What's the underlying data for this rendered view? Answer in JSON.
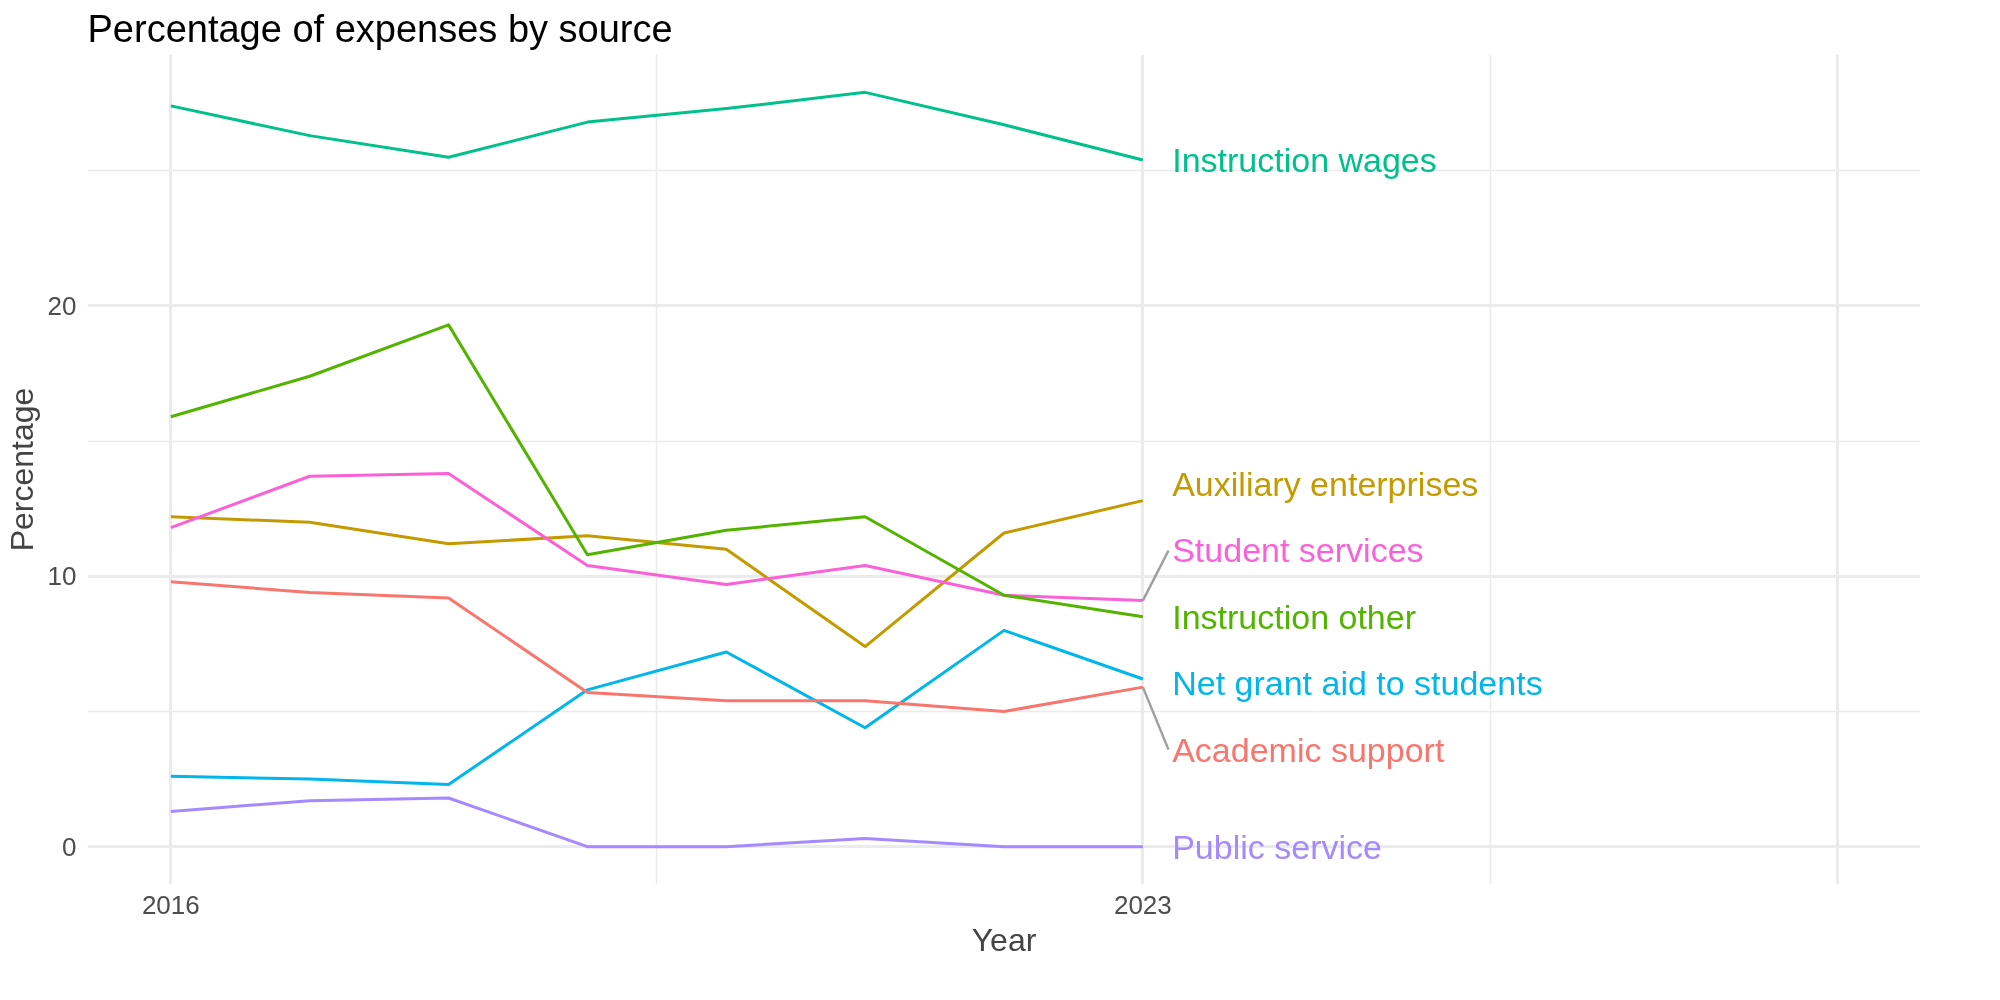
{
  "chart_data": {
    "type": "line",
    "title": "Percentage of expenses by source",
    "xlabel": "Year",
    "ylabel": "Percentage",
    "x": [
      2016,
      2017,
      2018,
      2019,
      2020,
      2021,
      2022,
      2023
    ],
    "xlim": [
      2015.4,
      2028.6
    ],
    "xticks": [
      2016,
      2023,
      {
        "value": 2028,
        "label": null
      }
    ],
    "ylim": [
      -1.4,
      29.3
    ],
    "yticks": [
      0,
      10,
      20
    ],
    "grid": true,
    "line_style": "solid",
    "series": [
      {
        "name": "Instruction wages",
        "color": "#00c08b",
        "values": [
          27.4,
          26.3,
          25.5,
          26.8,
          27.3,
          27.9,
          26.7,
          25.4
        ]
      },
      {
        "name": "Auxiliary enterprises",
        "color": "#c49a00",
        "values": [
          12.2,
          12.0,
          11.2,
          11.5,
          11.0,
          7.4,
          11.6,
          12.8
        ]
      },
      {
        "name": "Student services",
        "color": "#fb61d7",
        "values": [
          11.8,
          13.7,
          13.8,
          10.4,
          9.7,
          10.4,
          9.3,
          9.1
        ]
      },
      {
        "name": "Instruction other",
        "color": "#53b400",
        "values": [
          15.9,
          17.4,
          19.3,
          10.8,
          11.7,
          12.2,
          9.3,
          8.5
        ]
      },
      {
        "name": "Net grant aid to students",
        "color": "#00b6eb",
        "values": [
          2.6,
          2.5,
          2.3,
          5.8,
          7.2,
          4.4,
          8.0,
          6.2
        ]
      },
      {
        "name": "Academic support",
        "color": "#f8766d",
        "values": [
          9.8,
          9.4,
          9.2,
          5.7,
          5.4,
          5.4,
          5.0,
          5.9
        ]
      },
      {
        "name": "Public service",
        "color": "#a58aff",
        "values": [
          1.3,
          1.7,
          1.8,
          0,
          0,
          0.3,
          0,
          0
        ]
      }
    ]
  }
}
